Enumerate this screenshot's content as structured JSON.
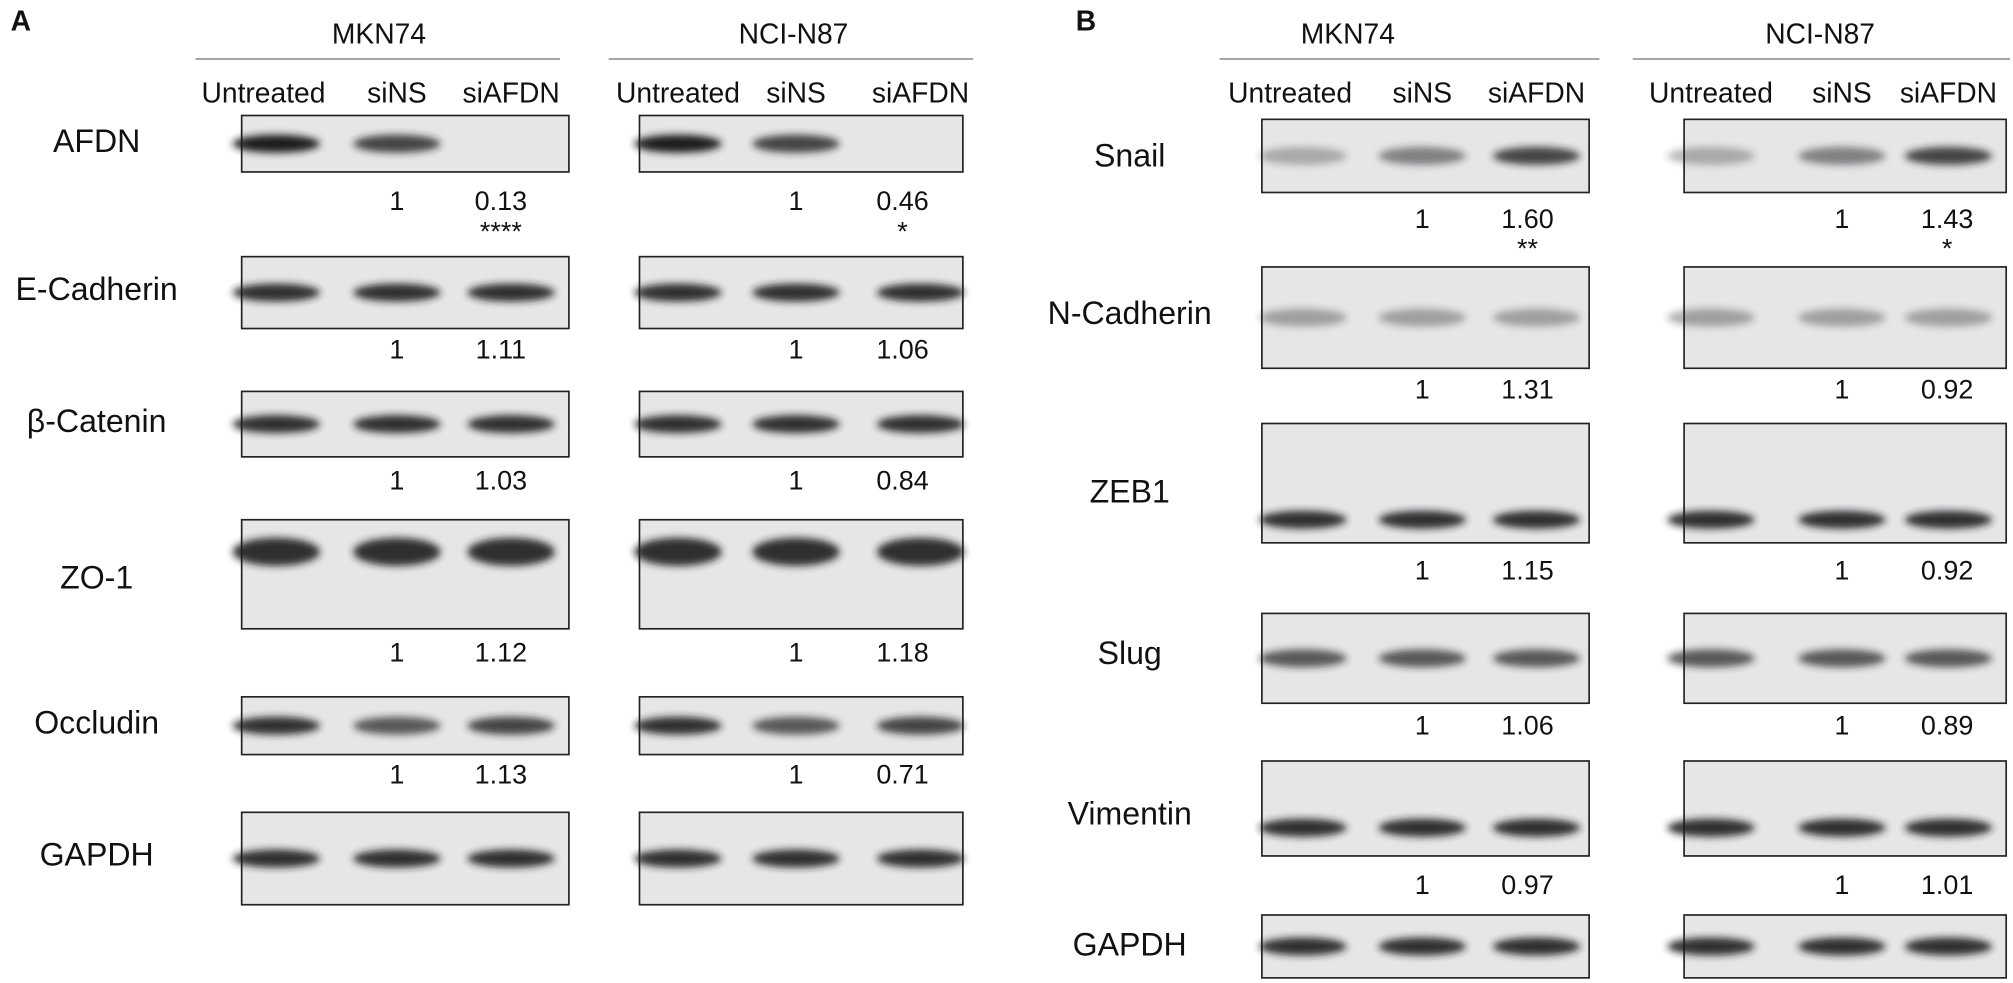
{
  "panels": [
    {
      "label": "A",
      "cell_lines": [
        {
          "name": "MKN74",
          "lanes": [
            "Untreated",
            "siNS",
            "siAFDN"
          ]
        },
        {
          "name": "NCI-N87",
          "lanes": [
            "Untreated",
            "siNS",
            "siAFDN"
          ]
        }
      ],
      "rows": [
        {
          "protein": "AFDN",
          "quant": [
            [
              "1",
              "0.13"
            ],
            [
              "1",
              "0.46"
            ]
          ],
          "significance": [
            "****",
            "*"
          ]
        },
        {
          "protein": "E-Cadherin",
          "quant": [
            [
              "1",
              "1.11"
            ],
            [
              "1",
              "1.06"
            ]
          ]
        },
        {
          "protein": "β-Catenin",
          "quant": [
            [
              "1",
              "1.03"
            ],
            [
              "1",
              "0.84"
            ]
          ]
        },
        {
          "protein": "ZO-1",
          "quant": [
            [
              "1",
              "1.12"
            ],
            [
              "1",
              "1.18"
            ]
          ]
        },
        {
          "protein": "Occludin",
          "quant": [
            [
              "1",
              "1.13"
            ],
            [
              "1",
              "0.71"
            ]
          ]
        },
        {
          "protein": "GAPDH"
        }
      ]
    },
    {
      "label": "B",
      "cell_lines": [
        {
          "name": "MKN74",
          "lanes": [
            "Untreated",
            "siNS",
            "siAFDN"
          ]
        },
        {
          "name": "NCI-N87",
          "lanes": [
            "Untreated",
            "siNS",
            "siAFDN"
          ]
        }
      ],
      "rows": [
        {
          "protein": "Snail",
          "quant": [
            [
              "1",
              "1.60"
            ],
            [
              "1",
              "1.43"
            ]
          ],
          "significance": [
            "**",
            "*"
          ]
        },
        {
          "protein": "N-Cadherin",
          "quant": [
            [
              "1",
              "1.31"
            ],
            [
              "1",
              "0.92"
            ]
          ]
        },
        {
          "protein": "ZEB1",
          "quant": [
            [
              "1",
              "1.15"
            ],
            [
              "1",
              "0.92"
            ]
          ]
        },
        {
          "protein": "Slug",
          "quant": [
            [
              "1",
              "1.06"
            ],
            [
              "1",
              "0.89"
            ]
          ]
        },
        {
          "protein": "Vimentin",
          "quant": [
            [
              "1",
              "0.97"
            ],
            [
              "1",
              "1.01"
            ]
          ]
        },
        {
          "protein": "GAPDH"
        }
      ]
    }
  ]
}
